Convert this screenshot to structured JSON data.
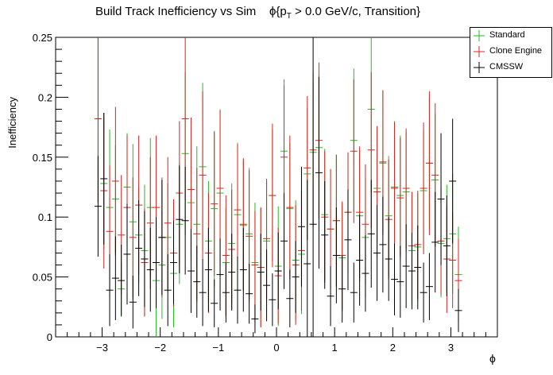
{
  "chart_data": {
    "type": "scatter",
    "title": "Build Track Inefficiency vs Sim",
    "title_phi": "ϕ{p",
    "title_sub": "T",
    "title_rest": " > 0.0 GeV/c, Transition}",
    "xlabel": "ϕ",
    "ylabel": "Inefficiency",
    "xlim": [
      -3.8,
      3.8
    ],
    "ylim": [
      0,
      0.25
    ],
    "x_ticks": [
      "−3",
      "−2",
      "−1",
      "0",
      "1",
      "2",
      "3"
    ],
    "x_tick_values": [
      -3,
      -2,
      -1,
      0,
      1,
      2,
      3
    ],
    "y_ticks": [
      "0",
      "0.05",
      "0.1",
      "0.15",
      "0.2",
      "0.25"
    ],
    "y_tick_values": [
      0,
      0.05,
      0.1,
      0.15,
      0.2,
      0.25
    ],
    "x": [
      -3.07,
      -2.97,
      -2.87,
      -2.77,
      -2.67,
      -2.57,
      -2.47,
      -2.37,
      -2.27,
      -2.17,
      -2.07,
      -1.97,
      -1.87,
      -1.77,
      -1.67,
      -1.57,
      -1.47,
      -1.37,
      -1.27,
      -1.17,
      -1.07,
      -0.97,
      -0.87,
      -0.77,
      -0.67,
      -0.57,
      -0.47,
      -0.37,
      -0.27,
      -0.17,
      -0.07,
      0.03,
      0.13,
      0.23,
      0.33,
      0.43,
      0.53,
      0.63,
      0.73,
      0.83,
      0.93,
      1.03,
      1.13,
      1.23,
      1.33,
      1.43,
      1.53,
      1.63,
      1.73,
      1.83,
      1.93,
      2.03,
      2.13,
      2.23,
      2.33,
      2.43,
      2.53,
      2.63,
      2.73,
      2.83,
      2.93,
      3.03,
      3.13
    ],
    "series": [
      {
        "name": "Standard",
        "color": "#22bb22",
        "y": [
          0.182,
          0.128,
          0.108,
          0.115,
          0.04,
          0.125,
          0.096,
          0.085,
          0.072,
          0.108,
          0.047,
          0.06,
          0.083,
          0.053,
          0.094,
          0.153,
          0.112,
          0.094,
          0.142,
          0.08,
          0.107,
          0.12,
          0.062,
          0.078,
          0.102,
          0.093,
          0.086,
          0.062,
          0.058,
          0.08,
          0.118,
          0.059,
          0.155,
          0.107,
          0.064,
          0.069,
          0.136,
          0.154,
          0.158,
          0.102,
          0.09,
          0.097,
          0.066,
          0.104,
          0.164,
          0.101,
          0.083,
          0.19,
          0.124,
          0.145,
          0.101,
          0.125,
          0.118,
          0.121,
          0.072,
          0.075,
          0.122,
          0.145,
          0.131,
          0.078,
          0.082,
          0.086,
          0.052
        ],
        "err": [
          0.07,
          0.055,
          0.065,
          0.045,
          0.022,
          0.045,
          0.065,
          0.04,
          0.055,
          0.058,
          0.05,
          0.045,
          0.045,
          0.045,
          0.05,
          0.068,
          0.045,
          0.065,
          0.07,
          0.05,
          0.065,
          0.07,
          0.045,
          0.05,
          0.06,
          0.055,
          0.055,
          0.05,
          0.05,
          0.05,
          0.055,
          0.05,
          0.06,
          0.055,
          0.05,
          0.05,
          0.055,
          0.06,
          0.06,
          0.055,
          0.05,
          0.055,
          0.045,
          0.05,
          0.06,
          0.055,
          0.05,
          0.07,
          0.05,
          0.06,
          0.05,
          0.055,
          0.05,
          0.05,
          0.045,
          0.045,
          0.05,
          0.055,
          0.055,
          0.045,
          0.045,
          0.05,
          0.04
        ]
      },
      {
        "name": "Clone Engine",
        "color": "#dd2222",
        "y": [
          0.182,
          0.122,
          0.088,
          0.13,
          0.085,
          0.108,
          0.083,
          0.11,
          0.062,
          0.095,
          0.108,
          0.083,
          0.095,
          0.07,
          0.12,
          0.182,
          0.123,
          0.086,
          0.135,
          0.07,
          0.111,
          0.124,
          0.068,
          0.073,
          0.106,
          0.094,
          0.084,
          0.06,
          0.058,
          0.082,
          0.118,
          0.051,
          0.15,
          0.108,
          0.06,
          0.072,
          0.141,
          0.156,
          0.164,
          0.1,
          0.09,
          0.097,
          0.068,
          0.104,
          0.155,
          0.104,
          0.094,
          0.156,
          0.121,
          0.146,
          0.098,
          0.124,
          0.116,
          0.124,
          0.076,
          0.077,
          0.124,
          0.145,
          0.135,
          0.08,
          0.065,
          0.064,
          0.047
        ],
        "err": [
          0.07,
          0.065,
          0.055,
          0.062,
          0.05,
          0.06,
          0.05,
          0.058,
          0.045,
          0.055,
          0.06,
          0.05,
          0.055,
          0.045,
          0.06,
          0.068,
          0.06,
          0.055,
          0.07,
          0.05,
          0.06,
          0.065,
          0.05,
          0.05,
          0.055,
          0.055,
          0.055,
          0.045,
          0.05,
          0.05,
          0.06,
          0.04,
          0.06,
          0.06,
          0.05,
          0.05,
          0.06,
          0.065,
          0.065,
          0.055,
          0.05,
          0.055,
          0.045,
          0.05,
          0.06,
          0.055,
          0.05,
          0.065,
          0.055,
          0.06,
          0.05,
          0.055,
          0.05,
          0.05,
          0.045,
          0.045,
          0.055,
          0.06,
          0.06,
          0.045,
          0.045,
          0.04,
          0.035
        ]
      },
      {
        "name": "CMSSW",
        "color": "#000000",
        "y": [
          0.109,
          0.132,
          0.039,
          0.049,
          0.047,
          0.069,
          0.029,
          0.074,
          0.065,
          0.056,
          0.062,
          0.083,
          0.039,
          0.062,
          0.098,
          0.097,
          0.055,
          0.046,
          0.037,
          0.056,
          0.028,
          0.052,
          0.037,
          0.054,
          0.039,
          0.056,
          0.036,
          0.015,
          0.054,
          0.043,
          0.031,
          0.055,
          0.08,
          0.032,
          0.05,
          0.092,
          0.061,
          0.094,
          0.137,
          0.085,
          0.034,
          0.068,
          0.04,
          0.081,
          0.037,
          0.064,
          0.053,
          0.086,
          0.07,
          0.077,
          0.065,
          0.048,
          0.046,
          0.059,
          0.055,
          0.058,
          0.037,
          0.042,
          0.079,
          0.115,
          0.076,
          0.13,
          0.022
        ],
        "err": [
          0.042,
          0.055,
          0.03,
          0.035,
          0.03,
          0.042,
          0.022,
          0.04,
          0.04,
          0.035,
          0.038,
          0.048,
          0.03,
          0.035,
          0.045,
          0.045,
          0.035,
          0.03,
          0.028,
          0.035,
          0.02,
          0.03,
          0.025,
          0.032,
          0.028,
          0.035,
          0.025,
          0.012,
          0.032,
          0.03,
          0.022,
          0.032,
          0.04,
          0.024,
          0.03,
          0.05,
          0.07,
          0.18,
          0.08,
          0.045,
          0.025,
          0.04,
          0.028,
          0.042,
          0.025,
          0.038,
          0.032,
          0.045,
          0.04,
          0.04,
          0.035,
          0.03,
          0.03,
          0.035,
          0.032,
          0.035,
          0.025,
          0.028,
          0.042,
          0.055,
          0.042,
          0.052,
          0.018
        ]
      }
    ],
    "legend_position": "top-right",
    "grid": false
  }
}
